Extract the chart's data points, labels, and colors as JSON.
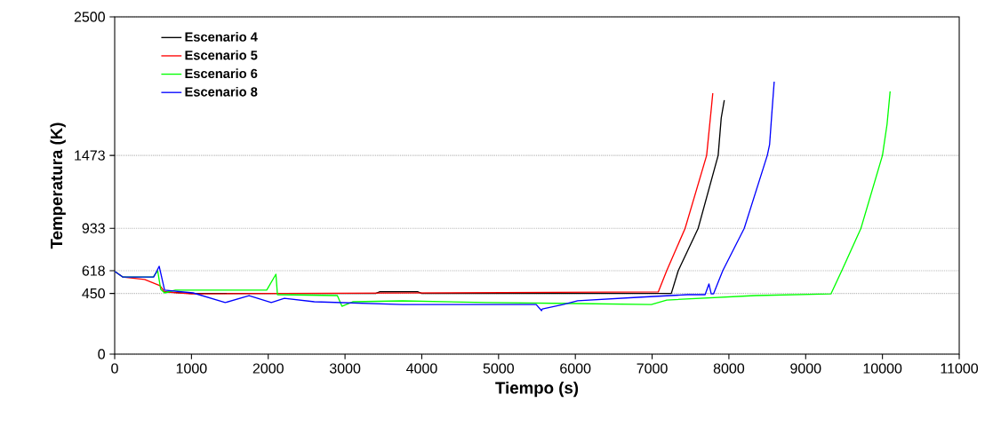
{
  "chart_data": {
    "type": "line",
    "xlabel": "Tiempo (s)",
    "ylabel": "Temperatura (K)",
    "xlim": [
      0,
      11000
    ],
    "ylim": [
      0,
      2500
    ],
    "xticks": [
      0,
      1000,
      2000,
      3000,
      4000,
      5000,
      6000,
      7000,
      8000,
      9000,
      10000,
      11000
    ],
    "yticks": [
      0,
      450,
      618,
      933,
      1473,
      2500
    ],
    "grid": "y",
    "legend": "top left",
    "marker": "none",
    "line_style": "solid",
    "series": [
      {
        "name": "Escenario 4",
        "color": "#000000",
        "x": [
          650,
          1000,
          3400,
          3450,
          3950,
          4000,
          7100,
          7250,
          7340,
          7600,
          7860,
          7900,
          7940
        ],
        "values": [
          461,
          450,
          450,
          462,
          462,
          450,
          450,
          450,
          618,
          933,
          1473,
          1750,
          1882
        ]
      },
      {
        "name": "Escenario 5",
        "color": "#ff0000",
        "x": [
          0,
          104,
          390,
          590,
          650,
          1000,
          7080,
          7190,
          7430,
          7710,
          7770,
          7790
        ],
        "values": [
          614,
          572,
          553,
          507,
          461,
          447,
          461,
          618,
          933,
          1473,
          1816,
          1934
        ]
      },
      {
        "name": "Escenario 6",
        "color": "#00ff00",
        "x": [
          0,
          104,
          500,
          560,
          600,
          650,
          790,
          1980,
          2100,
          2120,
          2900,
          2960,
          3100,
          3750,
          4840,
          6000,
          6990,
          7190,
          8350,
          9330,
          9470,
          9720,
          10000,
          10060,
          10100
        ],
        "values": [
          614,
          572,
          572,
          618,
          480,
          454,
          474,
          474,
          592,
          441,
          434,
          355,
          388,
          395,
          382,
          375,
          368,
          401,
          434,
          447,
          618,
          933,
          1473,
          1704,
          1947
        ]
      },
      {
        "name": "Escenario 8",
        "color": "#0000ff",
        "x": [
          0,
          104,
          510,
          580,
          650,
          1020,
          1440,
          1750,
          2040,
          2210,
          2600,
          3750,
          5490,
          5560,
          5570,
          5840,
          6030,
          6810,
          7460,
          7690,
          7740,
          7770,
          7800,
          7920,
          8200,
          8500,
          8530,
          8560,
          8590
        ],
        "values": [
          614,
          572,
          572,
          651,
          474,
          454,
          382,
          434,
          382,
          414,
          388,
          368,
          368,
          322,
          335,
          368,
          395,
          421,
          441,
          441,
          520,
          447,
          447,
          618,
          933,
          1473,
          1553,
          1790,
          2020
        ]
      }
    ]
  }
}
